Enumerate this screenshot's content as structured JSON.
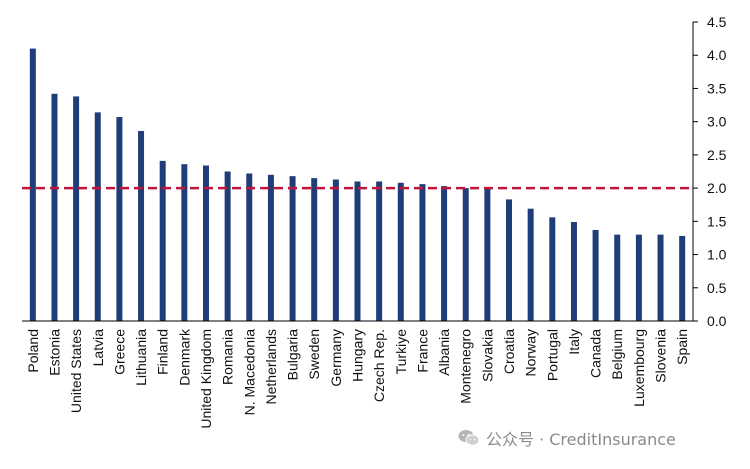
{
  "chart_data": {
    "type": "bar",
    "title": "",
    "xlabel": "",
    "ylabel": "",
    "categories": [
      "Poland",
      "Estonia",
      "United  States",
      "Latvia",
      "Greece",
      "Lithuania",
      "Finland",
      "Denmark",
      "United  Kingdom",
      "Romania",
      "N. Macedonia",
      "Netherlands",
      "Bulgaria",
      "Sweden",
      "Germany",
      "Hungary",
      "Czech Rep.",
      "Turkiye",
      "France",
      "Albania",
      "Montenegro",
      "Slovakia",
      "Croatia",
      "Norway",
      "Portugal",
      "Italy",
      "Canada",
      "Belgium",
      "Luxembourg",
      "Slovenia",
      "Spain"
    ],
    "values": [
      4.1,
      3.42,
      3.38,
      3.14,
      3.07,
      2.86,
      2.41,
      2.36,
      2.34,
      2.25,
      2.22,
      2.2,
      2.18,
      2.15,
      2.13,
      2.1,
      2.1,
      2.08,
      2.06,
      2.03,
      2.0,
      1.99,
      1.83,
      1.69,
      1.56,
      1.49,
      1.37,
      1.3,
      1.3,
      1.3,
      1.28
    ],
    "reference_line": 2.0,
    "ylim": [
      0.0,
      4.5
    ],
    "y_ticks": [
      "0.0",
      "0.5",
      "1.0",
      "1.5",
      "2.0",
      "2.5",
      "3.0",
      "3.5",
      "4.0",
      "4.5"
    ],
    "y_axis_side": "right",
    "grid": false,
    "colors": {
      "bar": "#1f3d78",
      "reference": "#c0163c"
    }
  },
  "watermark": {
    "text": "公众号 · CreditInsurance",
    "icon": "wechat-icon"
  }
}
